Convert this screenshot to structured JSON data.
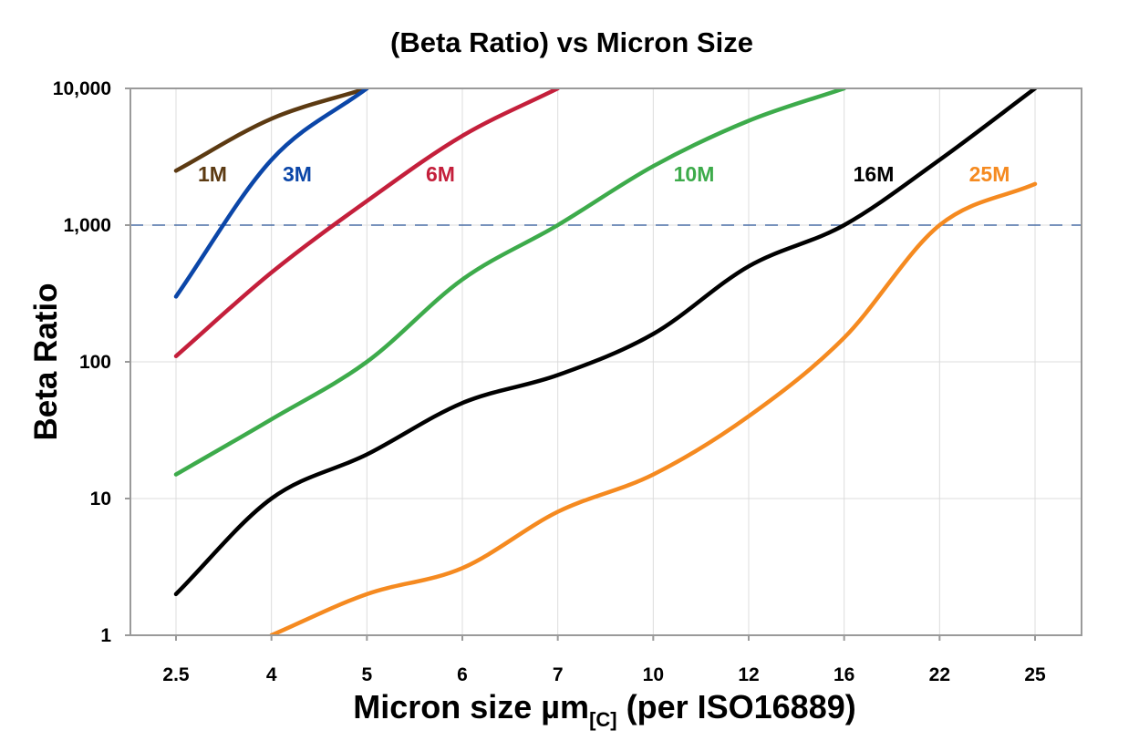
{
  "chart_data": {
    "type": "line",
    "title": "(Beta Ratio) vs Micron Size",
    "xlabel": {
      "main": "Micron size µm",
      "subscript": "[C]",
      "suffix": " (per ISO16889)"
    },
    "ylabel": "Beta Ratio",
    "y_scale": "log",
    "ylim": [
      1,
      10000
    ],
    "y_ticks": [
      1,
      10,
      100,
      1000,
      10000
    ],
    "y_tick_labels": [
      "1",
      "10",
      "100",
      "1,000",
      "10,000"
    ],
    "categories": [
      "2.5",
      "4",
      "5",
      "6",
      "7",
      "10",
      "12",
      "16",
      "22",
      "25"
    ],
    "grid": true,
    "reference_line": {
      "value": 1000,
      "style": "dashed",
      "color": "#4a6fa5"
    },
    "series": [
      {
        "name": "1M",
        "color": "#5c3a12",
        "values": [
          2500,
          6000,
          10000,
          null,
          null,
          null,
          null,
          null,
          null,
          null
        ]
      },
      {
        "name": "3M",
        "color": "#0b46a8",
        "values": [
          300,
          3000,
          10000,
          null,
          null,
          null,
          null,
          null,
          null,
          null
        ]
      },
      {
        "name": "6M",
        "color": "#c41f3b",
        "values": [
          110,
          450,
          1500,
          4500,
          10000,
          null,
          null,
          null,
          null,
          null
        ]
      },
      {
        "name": "10M",
        "color": "#3dab4b",
        "values": [
          15,
          38,
          100,
          400,
          1000,
          2700,
          5800,
          10000,
          null,
          null
        ]
      },
      {
        "name": "16M",
        "color": "#000000",
        "values": [
          2,
          10,
          21,
          50,
          80,
          160,
          500,
          1000,
          3000,
          10000
        ]
      },
      {
        "name": "25M",
        "color": "#f58a20",
        "values": [
          null,
          1,
          2,
          3.1,
          8,
          15,
          40,
          150,
          1000,
          2000
        ]
      }
    ]
  }
}
